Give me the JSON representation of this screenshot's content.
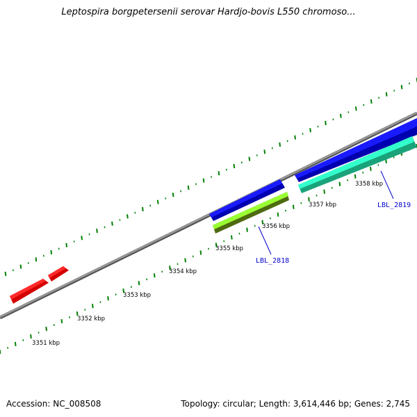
{
  "title": "Leptospira borgpetersenii serovar Hardjo-bovis L550 chromoso...",
  "footer": {
    "accession": "Accession: NC_008508",
    "summary": "Topology: circular; Length: 3,614,446 bp; Genes: 2,745"
  },
  "scale_labels": [
    "3351 kbp",
    "3352 kbp",
    "3353 kbp",
    "3354 kbp",
    "3355 kbp",
    "3356 kbp",
    "3357 kbp",
    "3358 kbp"
  ],
  "gene_labels": [
    "LBL_2818",
    "LBL_2819"
  ],
  "colors": {
    "backbone": "#808080",
    "forward_cds": "#ff0000",
    "reverse_cds": "#0000ff",
    "gene_a": "#99ff33",
    "gene_b": "#33ffcc",
    "tick": "#008000",
    "label": "#0000cc"
  }
}
